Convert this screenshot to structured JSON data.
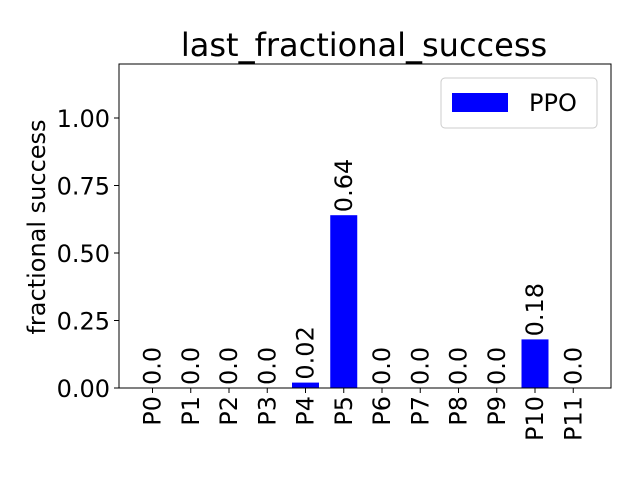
{
  "chart_data": {
    "type": "bar",
    "title": "last_fractional_success",
    "xlabel": "",
    "ylabel": "fractional success",
    "ylim": [
      0,
      1.2
    ],
    "yticks": [
      "0.00",
      "0.25",
      "0.50",
      "0.75",
      "1.00"
    ],
    "categories": [
      "P0",
      "P1",
      "P2",
      "P3",
      "P4",
      "P5",
      "P6",
      "P7",
      "P8",
      "P9",
      "P10",
      "P11"
    ],
    "series": [
      {
        "name": "PPO",
        "color": "#0000ff",
        "values": [
          0.0,
          0.0,
          0.0,
          0.0,
          0.02,
          0.64,
          0.0,
          0.0,
          0.0,
          0.0,
          0.18,
          0.0
        ],
        "labels": [
          "0.0",
          "0.0",
          "0.0",
          "0.0",
          "0.02",
          "0.64",
          "0.0",
          "0.0",
          "0.0",
          "0.0",
          "0.18",
          "0.0"
        ]
      }
    ],
    "legend": {
      "position": "top-right",
      "entries": [
        "PPO"
      ]
    },
    "grid": false
  }
}
